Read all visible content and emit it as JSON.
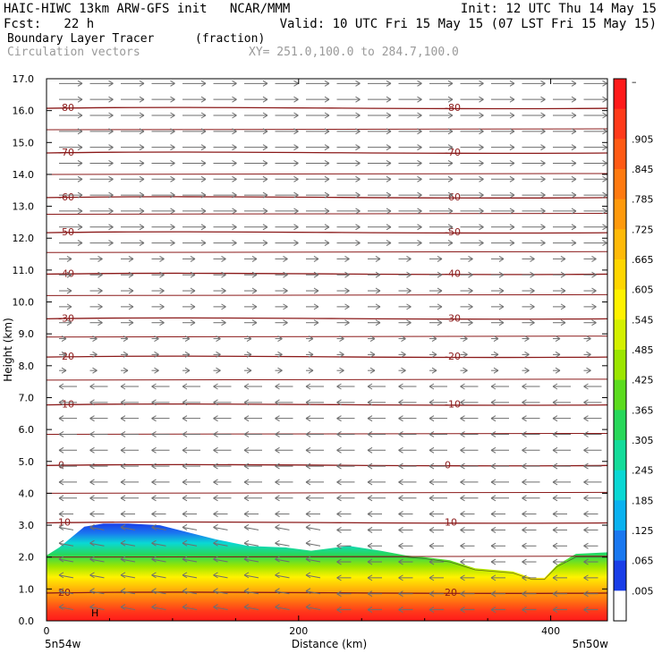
{
  "header": {
    "line1_left": "HAIC-HIWC 13km ARW-GFS init   NCAR/MMM",
    "line1_right": "Init: 12 UTC Thu 14 May 15",
    "line2_left": "Fcst:   22 h",
    "line2_right": "Valid: 10 UTC Fri 15 May 15 (07 LST Fri 15 May 15)",
    "field_name": "Boundary Layer Tracer",
    "field_units": "(fraction)",
    "overlay_name": "Circulation vectors",
    "cross_section": "XY= 251.0,100.0 to 284.7,100.0"
  },
  "axes": {
    "ylabel": "Height (km)",
    "xlabel": "Distance (km)",
    "yticks": [
      "0.0",
      "1.0",
      "2.0",
      "3.0",
      "4.0",
      "5.0",
      "6.0",
      "7.0",
      "8.0",
      "9.0",
      "10.0",
      "11.0",
      "12.0",
      "13.0",
      "14.0",
      "15.0",
      "16.0",
      "17.0"
    ],
    "xticks": [
      "0",
      "200",
      "400"
    ],
    "left_end": "5n54w",
    "right_end": "5n50w"
  },
  "colorbar": {
    "labels": [
      "–",
      ".905",
      ".845",
      ".785",
      ".725",
      ".665",
      ".605",
      ".545",
      ".485",
      ".425",
      ".365",
      ".305",
      ".245",
      ".185",
      ".125",
      ".065",
      ".005"
    ],
    "colors": [
      "#ff1a1a",
      "#ff3a1a",
      "#ff5a14",
      "#ff7a10",
      "#ff9a0c",
      "#ffba08",
      "#ffd600",
      "#fff200",
      "#d4f000",
      "#9ce600",
      "#5cdc1e",
      "#28d85a",
      "#14dc9a",
      "#0ad8d4",
      "#0ab2f0",
      "#1a78f0",
      "#1a3ee8",
      "#ffffff"
    ]
  },
  "chart_data": {
    "type": "area",
    "title": "Boundary Layer Tracer",
    "xlabel": "Distance (km)",
    "ylabel": "Height (km)",
    "xlim": [
      0,
      445
    ],
    "ylim": [
      0,
      17
    ],
    "tracer_top": {
      "x": [
        0,
        10,
        30,
        45,
        65,
        90,
        110,
        135,
        160,
        190,
        210,
        240,
        265,
        285,
        300,
        320,
        340,
        370,
        385,
        395,
        405,
        420,
        445
      ],
      "y": [
        2.05,
        2.3,
        2.95,
        3.05,
        3.05,
        3.0,
        2.8,
        2.55,
        2.35,
        2.3,
        2.2,
        2.35,
        2.2,
        2.05,
        2.0,
        1.9,
        1.65,
        1.55,
        1.35,
        1.35,
        1.75,
        2.1,
        2.15
      ]
    },
    "temperature_contours": [
      {
        "label": "-80",
        "km": 16.1
      },
      {
        "label": "-70",
        "km": 14.7
      },
      {
        "label": "-60",
        "km": 13.3
      },
      {
        "label": "-50",
        "km": 12.2
      },
      {
        "label": "-40",
        "km": 10.9
      },
      {
        "label": "-30",
        "km": 9.5
      },
      {
        "label": "-20",
        "km": 8.3
      },
      {
        "label": "-10",
        "km": 6.8
      },
      {
        "label": "0",
        "km": 4.9
      },
      {
        "label": "10",
        "km": 3.1
      },
      {
        "label": "20",
        "km": 0.9
      }
    ],
    "annotations": [
      "H"
    ]
  }
}
